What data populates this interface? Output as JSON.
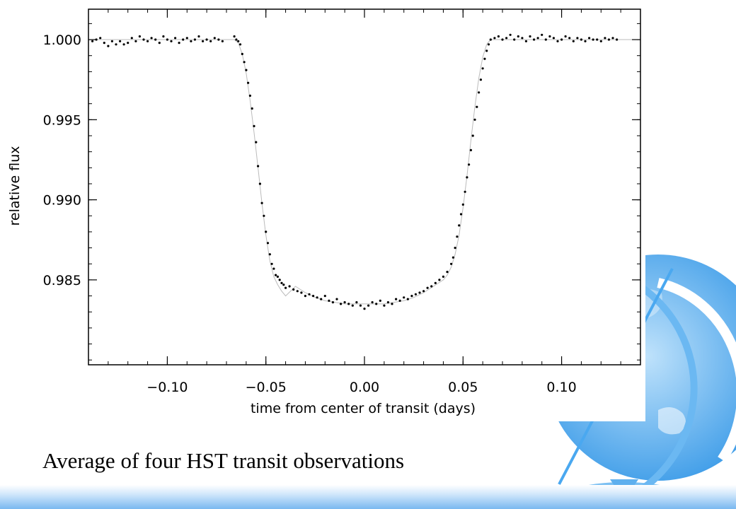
{
  "slide": {
    "caption": "Average of four HST transit observations",
    "colors": {
      "globe_blue": "#4aa8f0",
      "globe_light": "#9ad0f8",
      "band": "#7ab8f0",
      "points": "#000000",
      "model_line": "#bbbbbb"
    },
    "decoration": "globe-icon"
  },
  "chart_data": {
    "type": "scatter",
    "title": "",
    "xlabel": "time from center of transit (days)",
    "ylabel": "relative flux",
    "xlim": [
      -0.14,
      0.14
    ],
    "ylim": [
      0.9797,
      1.0019
    ],
    "xticks": [
      -0.1,
      -0.05,
      0.0,
      0.05,
      0.1
    ],
    "xtick_labels": [
      "−0.10",
      "−0.05",
      "0.00",
      "0.05",
      "0.10"
    ],
    "yticks": [
      0.985,
      0.99,
      0.995,
      1.0
    ],
    "ytick_labels": [
      "0.985",
      "0.990",
      "0.995",
      "1.000"
    ],
    "grid": false,
    "legend": "none",
    "model_curve": {
      "x": [
        -0.14,
        -0.066,
        -0.064,
        -0.062,
        -0.06,
        -0.058,
        -0.056,
        -0.054,
        -0.052,
        -0.05,
        -0.048,
        -0.046,
        -0.044,
        -0.042,
        -0.04,
        -0.035,
        -0.03,
        -0.025,
        -0.02,
        -0.015,
        -0.01,
        -0.005,
        0.0,
        0.005,
        0.01,
        0.015,
        0.02,
        0.025,
        0.03,
        0.035,
        0.04,
        0.042,
        0.044,
        0.046,
        0.048,
        0.05,
        0.052,
        0.054,
        0.056,
        0.058,
        0.06,
        0.062,
        0.064,
        0.066,
        0.14
      ],
      "y": [
        1.0,
        1.0,
        0.9998,
        0.9991,
        0.9979,
        0.9962,
        0.9942,
        0.992,
        0.9898,
        0.9878,
        0.9862,
        0.9852,
        0.9847,
        0.9843,
        0.984,
        0.9846,
        0.9842,
        0.9839,
        0.9837,
        0.9836,
        0.9835,
        0.9835,
        0.9835,
        0.9835,
        0.9835,
        0.9836,
        0.9837,
        0.9839,
        0.9842,
        0.9846,
        0.985,
        0.9853,
        0.9858,
        0.9866,
        0.9878,
        0.9895,
        0.9915,
        0.9937,
        0.9958,
        0.9976,
        0.9989,
        0.9997,
        1.0,
        1.0,
        1.0
      ]
    },
    "series": [
      {
        "x": [
          -0.138,
          -0.136,
          -0.134,
          -0.132,
          -0.13,
          -0.128,
          -0.126,
          -0.124,
          -0.122,
          -0.12,
          -0.118,
          -0.116,
          -0.114,
          -0.112,
          -0.11,
          -0.108,
          -0.106,
          -0.104,
          -0.102,
          -0.1,
          -0.098,
          -0.096,
          -0.094,
          -0.092,
          -0.09,
          -0.088,
          -0.086,
          -0.084,
          -0.082,
          -0.08,
          -0.078,
          -0.076,
          -0.074,
          -0.072,
          -0.066,
          -0.065,
          -0.064,
          -0.063,
          -0.062,
          -0.061,
          -0.06,
          -0.059,
          -0.058,
          -0.057,
          -0.056,
          -0.055,
          -0.054,
          -0.053,
          -0.052,
          -0.051,
          -0.05,
          -0.049,
          -0.048,
          -0.047,
          -0.046,
          -0.045,
          -0.044,
          -0.043,
          -0.042,
          -0.041,
          -0.04,
          -0.038,
          -0.036,
          -0.034,
          -0.032,
          -0.03,
          -0.028,
          -0.026,
          -0.024,
          -0.022,
          -0.02,
          -0.018,
          -0.016,
          -0.014,
          -0.012,
          -0.01,
          -0.008,
          -0.006,
          -0.004,
          -0.002,
          0.0,
          0.002,
          0.004,
          0.006,
          0.008,
          0.01,
          0.012,
          0.014,
          0.016,
          0.018,
          0.02,
          0.022,
          0.024,
          0.026,
          0.028,
          0.03,
          0.032,
          0.034,
          0.036,
          0.038,
          0.04,
          0.042,
          0.044,
          0.045,
          0.046,
          0.047,
          0.048,
          0.049,
          0.05,
          0.051,
          0.052,
          0.053,
          0.054,
          0.055,
          0.056,
          0.057,
          0.058,
          0.059,
          0.06,
          0.061,
          0.062,
          0.063,
          0.064,
          0.066,
          0.068,
          0.07,
          0.072,
          0.074,
          0.076,
          0.078,
          0.08,
          0.082,
          0.084,
          0.086,
          0.088,
          0.09,
          0.092,
          0.094,
          0.096,
          0.098,
          0.1,
          0.102,
          0.104,
          0.106,
          0.108,
          0.11,
          0.112,
          0.114,
          0.116,
          0.118,
          0.12,
          0.122,
          0.124,
          0.126,
          0.128
        ],
        "y": [
          0.9999,
          1.0,
          1.0001,
          0.9998,
          0.9996,
          0.9999,
          0.9997,
          0.9999,
          0.9997,
          0.9998,
          1.0001,
          0.9999,
          1.0002,
          1.0,
          0.9999,
          1.0001,
          1.0,
          0.9998,
          1.0002,
          1.0,
          0.9999,
          1.0001,
          0.9998,
          1.0,
          1.0001,
          0.9999,
          1.0,
          1.0002,
          0.9999,
          1.0,
          0.9999,
          1.0001,
          1.0,
          0.9999,
          1.0002,
          1.0,
          0.9999,
          0.9997,
          0.9991,
          0.9986,
          0.9981,
          0.9973,
          0.9965,
          0.9957,
          0.9946,
          0.9936,
          0.9921,
          0.991,
          0.9898,
          0.989,
          0.988,
          0.9873,
          0.9866,
          0.986,
          0.9857,
          0.9853,
          0.9852,
          0.985,
          0.9848,
          0.9847,
          0.9845,
          0.9846,
          0.9844,
          0.9843,
          0.9842,
          0.984,
          0.9841,
          0.984,
          0.9839,
          0.9838,
          0.984,
          0.9837,
          0.9836,
          0.9838,
          0.9835,
          0.9836,
          0.9835,
          0.9834,
          0.9836,
          0.9834,
          0.9832,
          0.9834,
          0.9836,
          0.9835,
          0.9837,
          0.9834,
          0.9836,
          0.9835,
          0.9838,
          0.9837,
          0.9839,
          0.9838,
          0.984,
          0.9841,
          0.9842,
          0.9843,
          0.9845,
          0.9846,
          0.9848,
          0.985,
          0.9852,
          0.9855,
          0.986,
          0.9864,
          0.987,
          0.9877,
          0.9884,
          0.9891,
          0.9897,
          0.9905,
          0.9914,
          0.9922,
          0.9931,
          0.994,
          0.995,
          0.9958,
          0.9967,
          0.9975,
          0.9982,
          0.9988,
          0.9993,
          0.9997,
          1.0,
          1.0001,
          1.0002,
          1.0,
          1.0001,
          1.0003,
          1.0,
          1.0002,
          1.0001,
          0.9999,
          1.0002,
          1.0,
          1.0001,
          1.0003,
          1.0,
          1.0002,
          1.0001,
          0.9999,
          1.0,
          1.0002,
          1.0001,
          0.9999,
          1.0001,
          1.0,
          0.9999,
          1.0001,
          1.0,
          1.0,
          0.9999,
          1.0001,
          1.0,
          1.0001,
          1.0
        ]
      }
    ]
  }
}
